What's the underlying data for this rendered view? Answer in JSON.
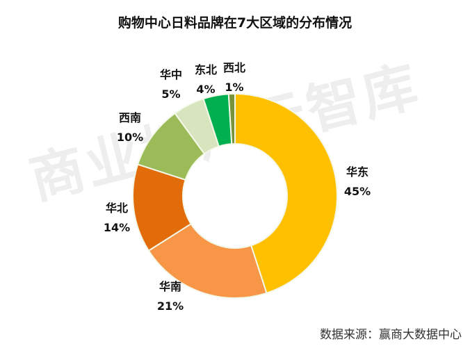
{
  "chart_data": {
    "type": "pie",
    "variant": "donut",
    "title": "购物中心日料品牌在7大区域的分布情况",
    "categories": [
      "华东",
      "华南",
      "华北",
      "西南",
      "华中",
      "东北",
      "西北"
    ],
    "values": [
      45,
      21,
      14,
      10,
      5,
      4,
      1
    ],
    "labels": [
      "45%",
      "21%",
      "14%",
      "10%",
      "5%",
      "4%",
      "1%"
    ],
    "colors": [
      "#FFC000",
      "#F79646",
      "#E26B0A",
      "#9BBB59",
      "#D7E4BD",
      "#00B050",
      "#77933C"
    ],
    "unit": "%"
  },
  "source": "数据来源：赢商大数据中心",
  "watermark": "商业地产云智库"
}
